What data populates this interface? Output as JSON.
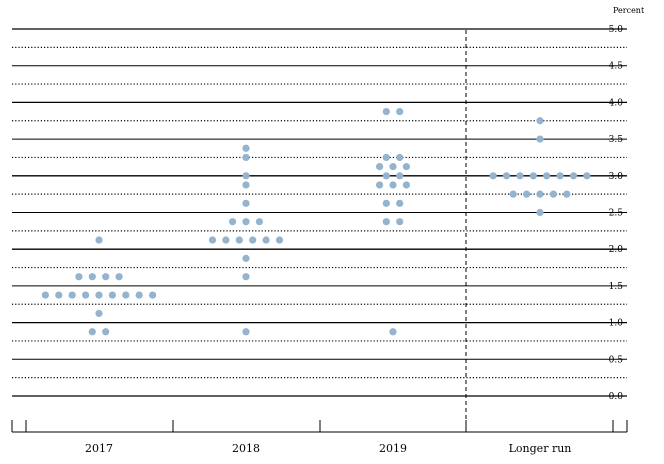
{
  "chart_data": {
    "type": "scatter",
    "unit_label": "Percent",
    "categories": [
      "2017",
      "2018",
      "2019",
      "Longer run"
    ],
    "ylim": [
      0,
      5
    ],
    "y_ticks": [
      "0.0",
      "0.5",
      "1.0",
      "1.5",
      "2.0",
      "2.5",
      "3.0",
      "3.5",
      "4.0",
      "4.5",
      "5.0"
    ],
    "grid": true,
    "dot_color": "#93b3cf",
    "series": [
      {
        "category": "2017",
        "points": [
          {
            "y": 2.125,
            "count": 1
          },
          {
            "y": 1.625,
            "count": 4
          },
          {
            "y": 1.375,
            "count": 9
          },
          {
            "y": 1.125,
            "count": 1
          },
          {
            "y": 0.875,
            "count": 2
          }
        ]
      },
      {
        "category": "2018",
        "points": [
          {
            "y": 3.375,
            "count": 1
          },
          {
            "y": 3.25,
            "count": 1
          },
          {
            "y": 3.0,
            "count": 1
          },
          {
            "y": 2.875,
            "count": 1
          },
          {
            "y": 2.625,
            "count": 1
          },
          {
            "y": 2.375,
            "count": 3
          },
          {
            "y": 2.125,
            "count": 6
          },
          {
            "y": 1.875,
            "count": 1
          },
          {
            "y": 1.625,
            "count": 1
          },
          {
            "y": 0.875,
            "count": 1
          }
        ]
      },
      {
        "category": "2019",
        "points": [
          {
            "y": 3.875,
            "count": 2
          },
          {
            "y": 3.25,
            "count": 2
          },
          {
            "y": 3.125,
            "count": 3
          },
          {
            "y": 3.0,
            "count": 2
          },
          {
            "y": 2.875,
            "count": 3
          },
          {
            "y": 2.625,
            "count": 2
          },
          {
            "y": 2.375,
            "count": 2
          },
          {
            "y": 0.875,
            "count": 1
          }
        ]
      },
      {
        "category": "Longer run",
        "points": [
          {
            "y": 3.75,
            "count": 1
          },
          {
            "y": 3.5,
            "count": 1
          },
          {
            "y": 3.0,
            "count": 8
          },
          {
            "y": 2.75,
            "count": 5
          },
          {
            "y": 2.5,
            "count": 1
          }
        ]
      }
    ]
  }
}
